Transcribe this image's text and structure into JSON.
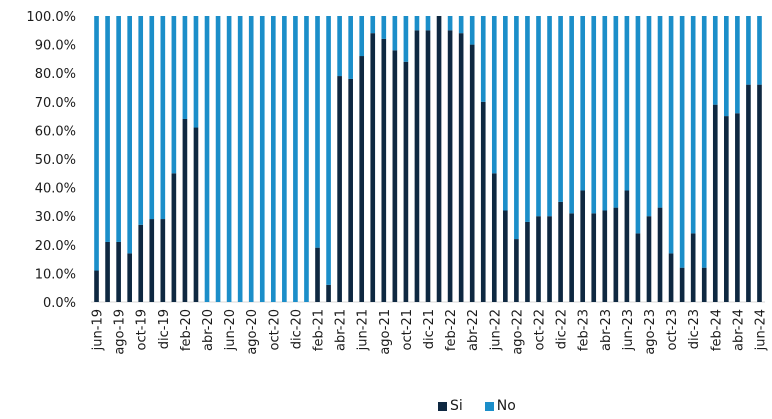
{
  "chart_data": {
    "type": "bar",
    "stacked": true,
    "title": "",
    "xlabel": "",
    "ylabel": "",
    "ylim": [
      0,
      100
    ],
    "yticks": [
      "0.0%",
      "10.0%",
      "20.0%",
      "30.0%",
      "40.0%",
      "50.0%",
      "60.0%",
      "70.0%",
      "80.0%",
      "90.0%",
      "100.0%"
    ],
    "categories": [
      "jun-19",
      "jul-19",
      "ago-19",
      "sep-19",
      "oct-19",
      "nov-19",
      "dic-19",
      "ene-20",
      "feb-20",
      "mar-20",
      "abr-20",
      "may-20",
      "jun-20",
      "jul-20",
      "ago-20",
      "sep-20",
      "oct-20",
      "nov-20",
      "dic-20",
      "ene-21",
      "feb-21",
      "mar-21",
      "abr-21",
      "may-21",
      "jun-21",
      "jul-21",
      "ago-21",
      "sep-21",
      "oct-21",
      "nov-21",
      "dic-21",
      "ene-22",
      "feb-22",
      "mar-22",
      "abr-22",
      "may-22",
      "jun-22",
      "jul-22",
      "ago-22",
      "sep-22",
      "oct-22",
      "nov-22",
      "dic-22",
      "ene-23",
      "feb-23",
      "mar-23",
      "abr-23",
      "may-23",
      "jun-23",
      "jul-23",
      "ago-23",
      "sep-23",
      "oct-23",
      "nov-23",
      "dic-23",
      "ene-24",
      "feb-24",
      "mar-24",
      "abr-24",
      "may-24",
      "jun-24"
    ],
    "shown_tick_every": 2,
    "series": [
      {
        "name": "Si",
        "color": "#0e2841",
        "values": [
          11,
          21,
          21,
          17,
          27,
          29,
          29,
          45,
          64,
          61,
          0,
          0,
          0,
          0,
          0,
          0,
          0,
          0,
          0,
          0,
          19,
          6,
          79,
          78,
          86,
          94,
          92,
          88,
          84,
          95,
          95,
          100,
          95,
          94,
          90,
          70,
          45,
          32,
          22,
          28,
          30,
          30,
          35,
          31,
          39,
          31,
          32,
          33,
          39,
          24,
          30,
          33,
          17,
          12,
          24,
          12,
          69,
          65,
          66,
          76,
          76
        ]
      },
      {
        "name": "No",
        "color": "#1b8ec9",
        "values": [
          89,
          79,
          79,
          83,
          73,
          71,
          71,
          55,
          36,
          39,
          100,
          100,
          100,
          100,
          100,
          100,
          100,
          100,
          100,
          100,
          81,
          94,
          21,
          22,
          14,
          6,
          8,
          12,
          16,
          5,
          5,
          0,
          5,
          6,
          10,
          30,
          55,
          68,
          78,
          72,
          70,
          70,
          65,
          69,
          61,
          69,
          68,
          67,
          61,
          76,
          70,
          67,
          83,
          88,
          76,
          88,
          31,
          35,
          34,
          24,
          24
        ]
      }
    ],
    "legend": "bottom-center"
  }
}
